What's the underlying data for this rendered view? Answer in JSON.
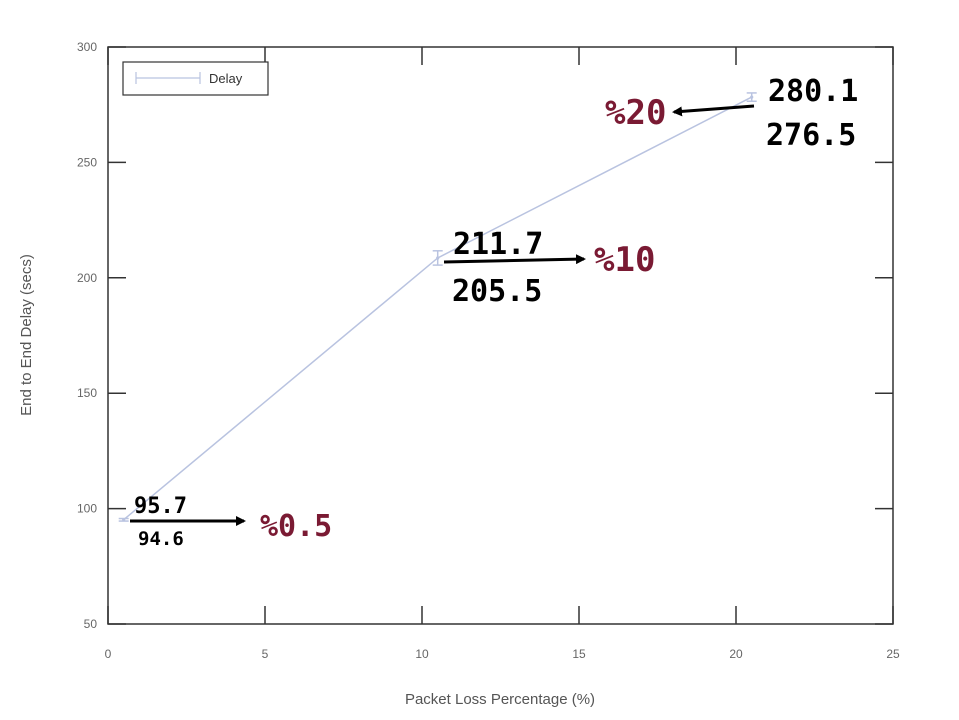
{
  "chart_data": {
    "type": "line",
    "title": "",
    "xlabel": "Packet Loss Percentage (%)",
    "ylabel": "End to End Delay (secs)",
    "xlim": [
      0,
      25
    ],
    "ylim": [
      50,
      300
    ],
    "xticks": [
      0,
      5,
      10,
      15,
      20,
      25
    ],
    "yticks": [
      50,
      100,
      150,
      200,
      250,
      300
    ],
    "legend": {
      "position": "top-left",
      "entries": [
        "Delay"
      ]
    },
    "series": [
      {
        "name": "Delay",
        "color": "#b9c3e0",
        "points": [
          {
            "x": 0.5,
            "y": 95.2,
            "low": 94.6,
            "high": 95.7
          },
          {
            "x": 10.5,
            "y": 208.6,
            "low": 205.5,
            "high": 211.7
          },
          {
            "x": 20.5,
            "y": 278.3,
            "low": 276.5,
            "high": 280.1
          }
        ]
      }
    ],
    "annotations": [
      {
        "upper": "95.7",
        "lower": "94.6",
        "label": "%0.5"
      },
      {
        "upper": "211.7",
        "lower": "205.5",
        "label": "%10"
      },
      {
        "upper": "280.1",
        "lower": "276.5",
        "label": "%20"
      }
    ],
    "annotation_color": "#7a1a33",
    "grid": false
  }
}
